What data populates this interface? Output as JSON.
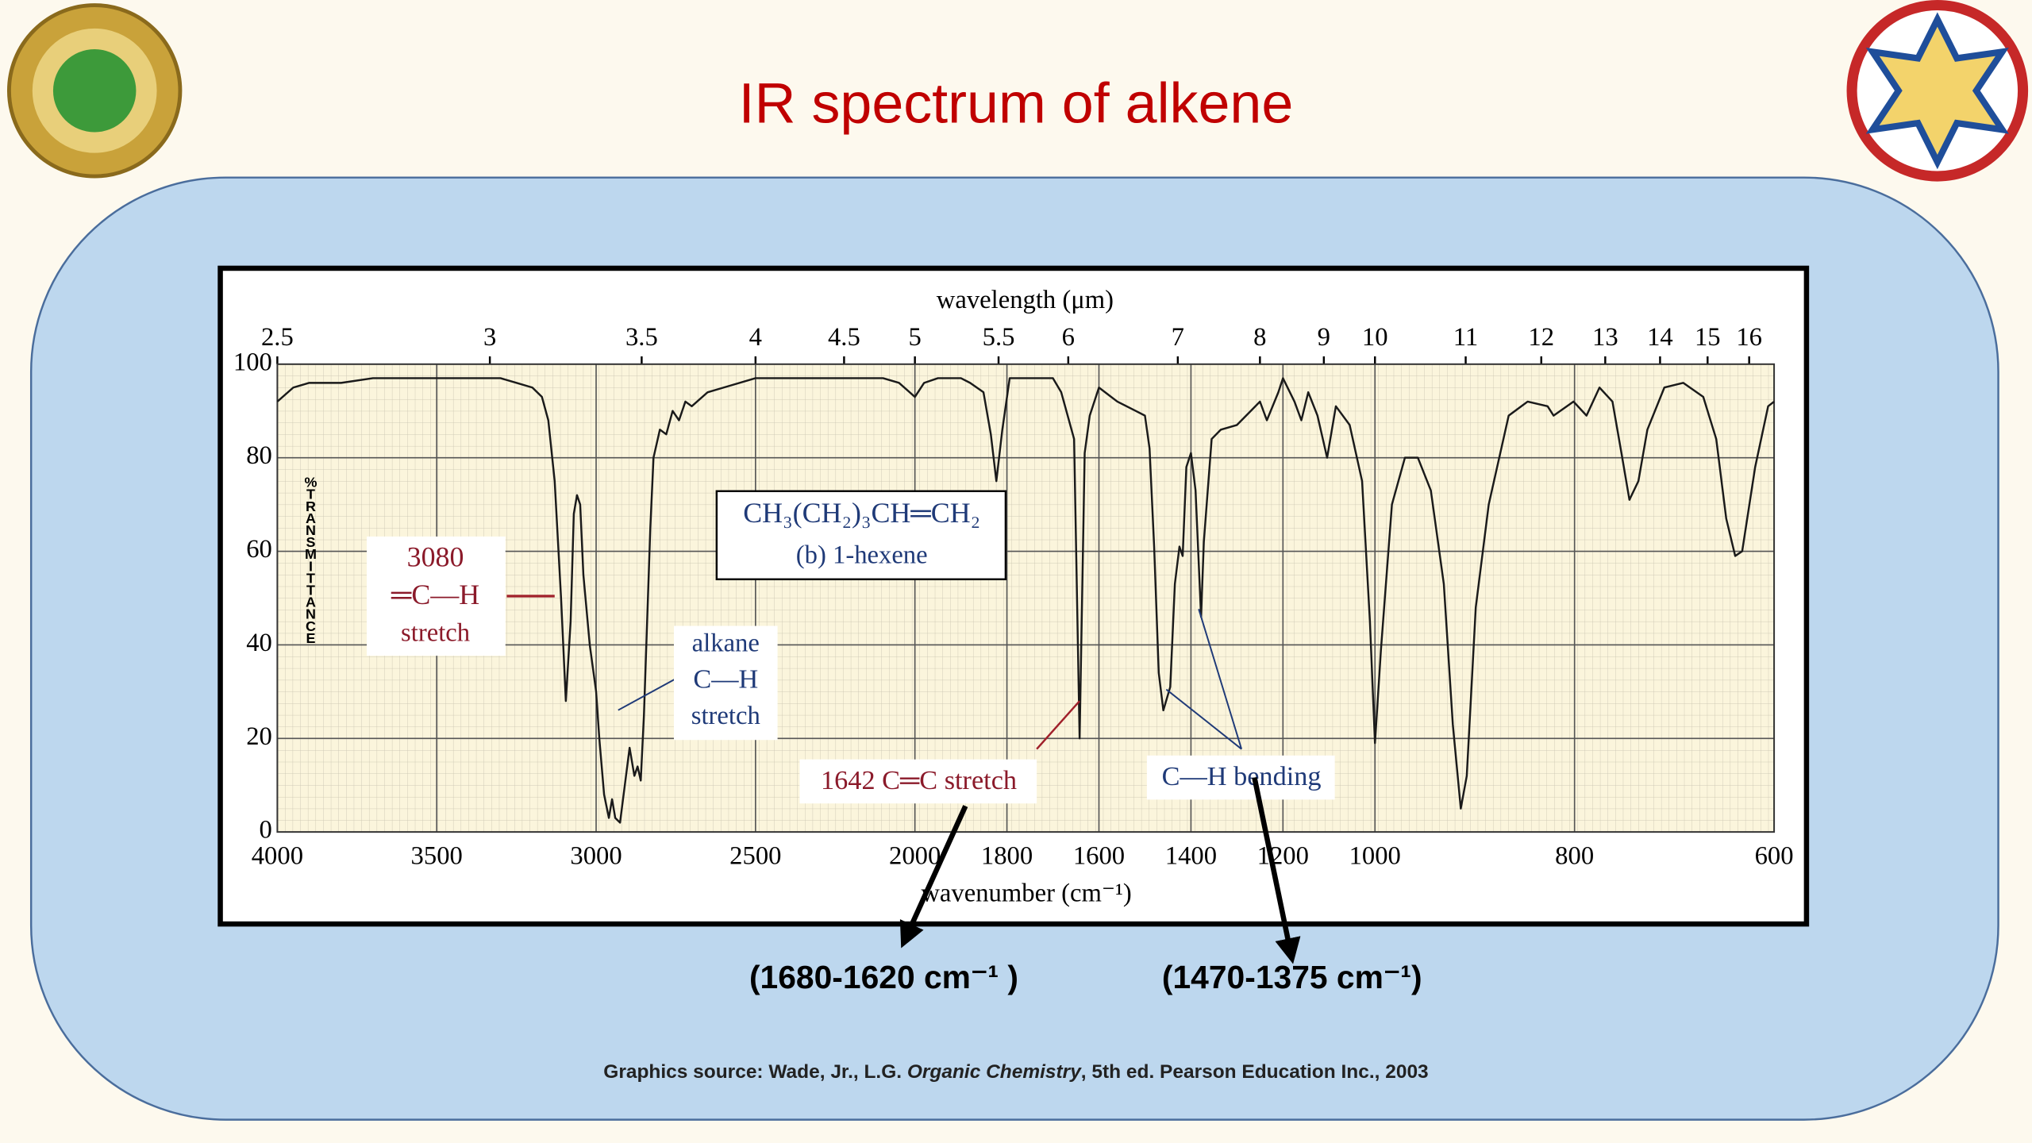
{
  "chart_data": {
    "type": "line",
    "title": "IR spectrum of alkene",
    "x_label": "wavenumber (cm⁻¹)",
    "x2_label": "wavelength (μm)",
    "y_label": "%TRANSMITTANCE",
    "grid": true,
    "xlim": [
      4000,
      600
    ],
    "xticks": [
      4000,
      3500,
      3000,
      2500,
      2000,
      1800,
      1600,
      1400,
      1200,
      1000,
      800,
      600
    ],
    "x2ticks": [
      2.5,
      3,
      3.5,
      4,
      4.5,
      5,
      5.5,
      6,
      7,
      8,
      9,
      10,
      11,
      12,
      13,
      14,
      15,
      16
    ],
    "ylim": [
      0,
      100
    ],
    "yticks": [
      0,
      20,
      40,
      60,
      80,
      100
    ],
    "x": [
      4000,
      3950,
      3900,
      3800,
      3700,
      3600,
      3500,
      3400,
      3300,
      3250,
      3200,
      3170,
      3150,
      3130,
      3110,
      3095,
      3080,
      3070,
      3060,
      3050,
      3040,
      3020,
      3000,
      2990,
      2975,
      2960,
      2950,
      2940,
      2925,
      2910,
      2895,
      2880,
      2870,
      2860,
      2850,
      2840,
      2830,
      2820,
      2800,
      2780,
      2760,
      2740,
      2720,
      2700,
      2650,
      2600,
      2500,
      2400,
      2300,
      2200,
      2100,
      2050,
      2000,
      1980,
      1950,
      1900,
      1880,
      1851,
      1835,
      1823,
      1810,
      1794,
      1760,
      1700,
      1682,
      1654,
      1642,
      1631,
      1620,
      1600,
      1560,
      1520,
      1500,
      1490,
      1480,
      1470,
      1460,
      1445,
      1435,
      1425,
      1418,
      1410,
      1400,
      1390,
      1378,
      1372,
      1355,
      1335,
      1300,
      1270,
      1250,
      1235,
      1210,
      1200,
      1175,
      1160,
      1145,
      1125,
      1104,
      1085,
      1055,
      1028,
      1011,
      1000,
      994,
      983,
      970,
      957,
      944,
      931,
      922,
      914,
      908,
      899,
      886,
      866,
      847,
      827,
      821,
      801,
      788,
      775,
      762,
      753,
      745,
      736,
      727,
      710,
      691,
      671,
      658,
      648,
      639,
      632,
      619,
      606,
      600
    ],
    "series": [
      {
        "color": "#1a1a1a",
        "values": [
          92,
          95,
          96,
          96,
          97,
          97,
          97,
          97,
          97,
          96,
          95,
          93,
          88,
          75,
          50,
          28,
          45,
          68,
          72,
          70,
          55,
          40,
          30,
          20,
          8,
          3,
          7,
          3,
          2,
          10,
          18,
          12,
          14,
          11,
          25,
          45,
          65,
          80,
          86,
          85,
          90,
          88,
          92,
          91,
          94,
          95,
          97,
          97,
          97,
          97,
          97,
          96,
          93,
          96,
          97,
          97,
          96,
          94,
          85,
          75,
          86,
          97,
          97,
          97,
          94,
          84,
          20,
          81,
          89,
          95,
          92,
          90,
          89,
          82,
          61,
          34,
          26,
          31,
          53,
          61,
          59,
          78,
          81,
          73,
          46,
          62,
          84,
          86,
          87,
          90,
          92,
          88,
          94,
          97,
          92,
          88,
          94,
          89,
          80,
          91,
          87,
          75,
          45,
          19,
          39,
          70,
          80,
          80,
          73,
          53,
          23,
          5,
          12,
          48,
          70,
          89,
          92,
          91,
          89,
          92,
          89,
          95,
          92,
          81,
          71,
          75,
          86,
          95,
          96,
          93,
          84,
          67,
          59,
          60,
          78,
          91,
          92
        ]
      }
    ],
    "annotations": {
      "ch_stretch": [
        "3080",
        "═C—H",
        "stretch"
      ],
      "alkane": [
        "alkane",
        "C—H",
        "stretch"
      ],
      "compound": [
        "CH₃(CH₂)₃CH═CH₂",
        "(b) 1-hexene"
      ],
      "cc_stretch": "1642 C═C stretch",
      "ch_bending": "C—H bending"
    },
    "ranges": [
      "(1680-1620 cm⁻¹ )",
      "(1470-1375 cm⁻¹)"
    ]
  },
  "source": {
    "prefix": "Graphics source: Wade, Jr., L.G. ",
    "italic": "Organic Chemistry",
    "suffix": ", 5th ed. Pearson Education Inc., 2003"
  }
}
